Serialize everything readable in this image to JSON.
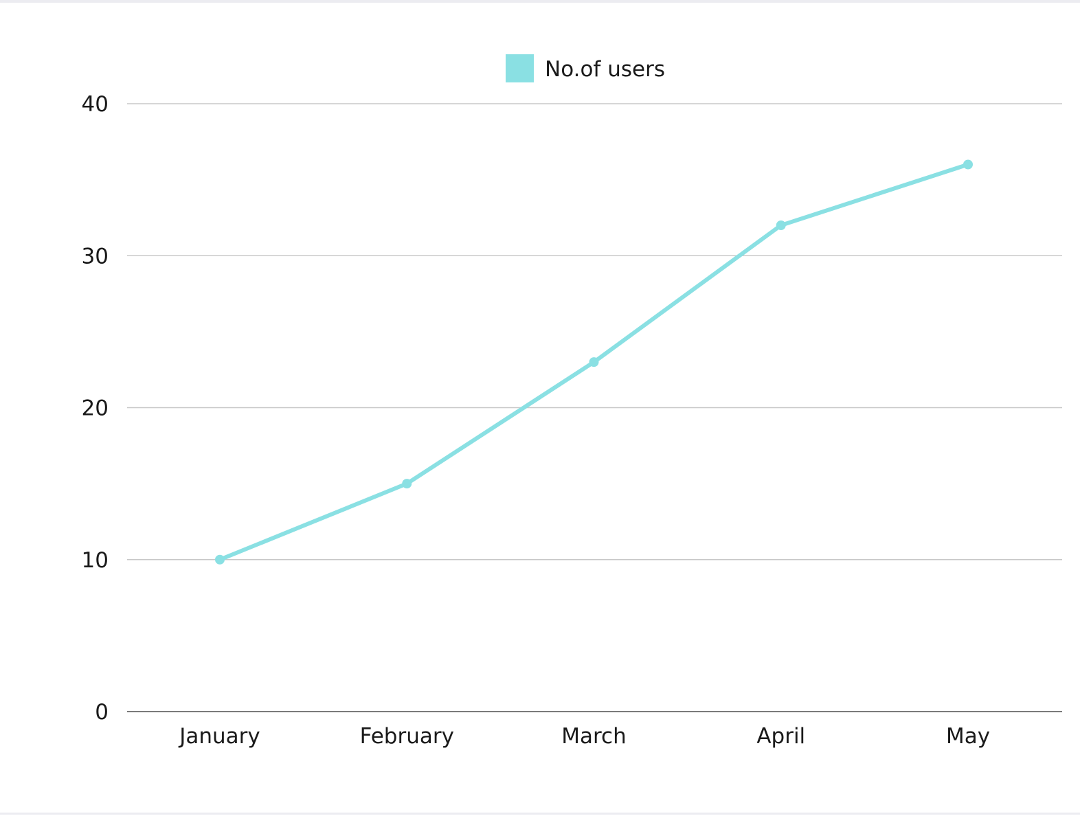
{
  "chart_data": {
    "type": "line",
    "categories": [
      "January",
      "February",
      "March",
      "April",
      "May"
    ],
    "series": [
      {
        "name": "No.of users",
        "values": [
          10,
          15,
          23,
          32,
          36
        ],
        "color": "#8ae0e3"
      }
    ],
    "yticks": [
      0,
      10,
      20,
      30,
      40
    ],
    "ylim": [
      0,
      40
    ],
    "grid": true,
    "legend_position": "top-center",
    "title": "",
    "xlabel": "",
    "ylabel": ""
  }
}
